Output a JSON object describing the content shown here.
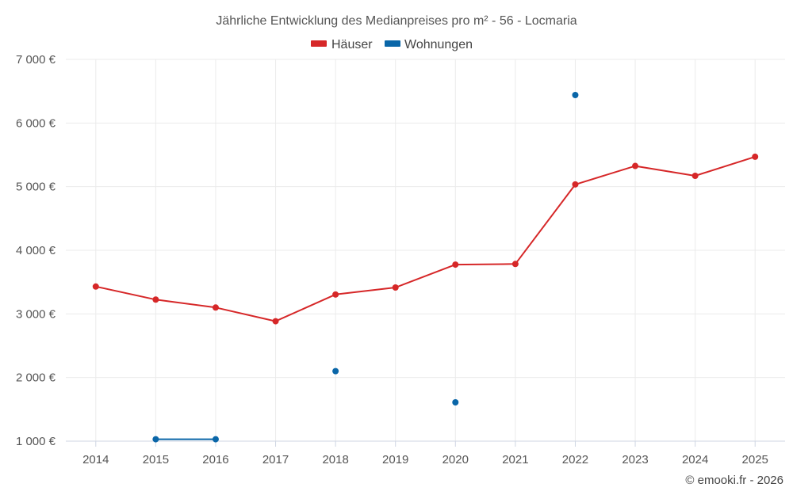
{
  "chart_data": {
    "type": "line",
    "title": "Jährliche Entwicklung des Medianpreises pro m² - 56 - Locmaria",
    "categories": [
      "2014",
      "2015",
      "2016",
      "2017",
      "2018",
      "2019",
      "2020",
      "2021",
      "2022",
      "2023",
      "2024",
      "2025"
    ],
    "series": [
      {
        "name": "Häuser",
        "color": "#d62728",
        "values": [
          3430,
          3225,
          3100,
          2885,
          3305,
          3415,
          3775,
          3785,
          5035,
          5325,
          5170,
          5470
        ]
      },
      {
        "name": "Wohnungen",
        "color": "#0a66a8",
        "values": [
          null,
          1030,
          1030,
          null,
          2100,
          null,
          1610,
          null,
          6440,
          null,
          null,
          null
        ]
      }
    ],
    "y_ticks": [
      "7 000 €",
      "6 000 €",
      "5 000 €",
      "4 000 €",
      "3 000 €",
      "2 000 €",
      "1 000 €"
    ],
    "ylim": [
      1000,
      7000
    ],
    "xlabel": "",
    "ylabel": "",
    "grid": true,
    "legend_position": "top-center",
    "credit": "© emooki.fr - 2026"
  }
}
